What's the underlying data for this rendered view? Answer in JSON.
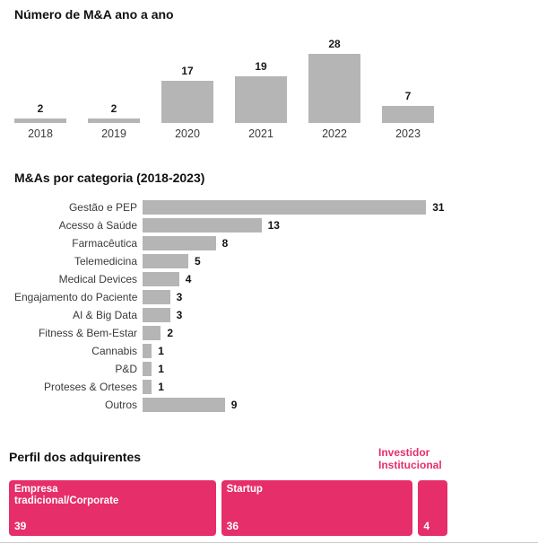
{
  "colors": {
    "bar_gray": "#b5b5b5",
    "accent_pink": "#e62e6b",
    "text_dark": "#111111",
    "text_axis": "#3a3a3a",
    "divider_gray": "#c9c9c9"
  },
  "chart_data": [
    {
      "type": "bar",
      "orientation": "vertical",
      "title": "Número de M&A ano a ano",
      "categories": [
        "2018",
        "2019",
        "2020",
        "2021",
        "2022",
        "2023"
      ],
      "values": [
        2,
        2,
        17,
        19,
        28,
        7
      ],
      "bar_color": "#b5b5b5",
      "data_labels": true,
      "axis": "none",
      "grid": false,
      "legend": "none"
    },
    {
      "type": "bar",
      "orientation": "horizontal",
      "title": "M&As por categoria (2018-2023)",
      "categories": [
        "Gestão e PEP",
        "Acesso à Saúde",
        "Farmacêutica",
        "Telemedicina",
        "Medical Devices",
        "Engajamento do Paciente",
        "AI & Big Data",
        "Fitness & Bem-Estar",
        "Cannabis",
        "P&D",
        "Proteses & Orteses",
        "Outros"
      ],
      "values": [
        31,
        13,
        8,
        5,
        4,
        3,
        3,
        2,
        1,
        1,
        1,
        9
      ],
      "bar_color": "#b5b5b5",
      "data_labels": true,
      "axis": "none",
      "grid": false,
      "legend": "none"
    },
    {
      "type": "bar",
      "subtype": "proportional-blocks",
      "title": "Perfil dos adquirentes",
      "categories": [
        "Empresa tradicional/Corporate",
        "Startup",
        "Investidor Institucional"
      ],
      "values": [
        39,
        36,
        4
      ],
      "block_color": "#e62e6b",
      "annotation_lines": [
        "Investidor",
        "Institucional"
      ],
      "blocks": [
        {
          "label_lines": [
            "Empresa",
            "tradicional/Corporate"
          ],
          "value": 39
        },
        {
          "label_lines": [
            "Startup"
          ],
          "value": 36
        },
        {
          "label_lines": [],
          "value": 4
        }
      ]
    }
  ]
}
